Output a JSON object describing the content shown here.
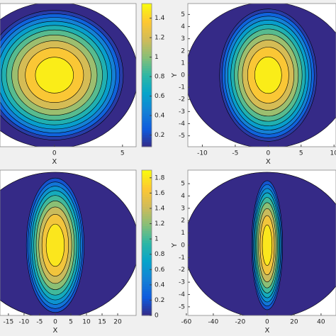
{
  "chart_data": [
    {
      "type": "contour",
      "xlabel": "X",
      "xlim": [
        -4.0,
        6.0
      ],
      "xticks": [
        0,
        5
      ],
      "ylim": [
        -5.9,
        5.9
      ],
      "levels": [
        0.15,
        0.3,
        0.45,
        0.6,
        0.75,
        0.9,
        1.05,
        1.2,
        1.35,
        1.5
      ],
      "clim": [
        0.08,
        1.55
      ],
      "cticks": [
        0.2,
        0.4,
        0.6,
        0.8,
        1,
        1.2,
        1.4
      ]
    },
    {
      "type": "contour",
      "xlabel": "X",
      "ylabel": "Y",
      "xlim": [
        -12.2,
        10.3
      ],
      "xticks": [
        -10,
        -5,
        0,
        5,
        10
      ],
      "ylim": [
        -5.9,
        5.9
      ],
      "yticks": [
        -5,
        -4,
        -3,
        -2,
        -1,
        0,
        1,
        2,
        3,
        4,
        5
      ],
      "levels": [
        0.15,
        0.3,
        0.45,
        0.6,
        0.75,
        0.9,
        1.05,
        1.2,
        1.35,
        1.5
      ],
      "clim": [
        0.08,
        1.55
      ]
    },
    {
      "type": "contour",
      "xlabel": "X",
      "xlim": [
        -17.7,
        25.9
      ],
      "xticks": [
        -15,
        -10,
        -5,
        0,
        5,
        10,
        15,
        20
      ],
      "ylim": [
        -5.7,
        6.1
      ],
      "levels": [
        0.2,
        0.4,
        0.6,
        0.8,
        1.0,
        1.2,
        1.4,
        1.6,
        1.8
      ],
      "clim": [
        0,
        1.9
      ],
      "cticks": [
        0,
        0.2,
        0.4,
        0.6,
        0.8,
        1,
        1.2,
        1.4,
        1.6,
        1.8
      ]
    },
    {
      "type": "contour",
      "xlabel": "X",
      "ylabel": "Y",
      "xlim": [
        -58.9,
        51.1
      ],
      "xticks": [
        -60,
        -40,
        -20,
        0,
        20,
        40
      ],
      "ylim": [
        -5.7,
        6.1
      ],
      "yticks": [
        -5,
        -4,
        -3,
        -2,
        -1,
        0,
        1,
        2,
        3,
        4,
        5
      ],
      "levels": [
        0.2,
        0.4,
        0.6,
        0.8,
        1.0,
        1.2,
        1.4,
        1.6,
        1.8
      ],
      "clim": [
        0,
        1.9
      ]
    }
  ]
}
